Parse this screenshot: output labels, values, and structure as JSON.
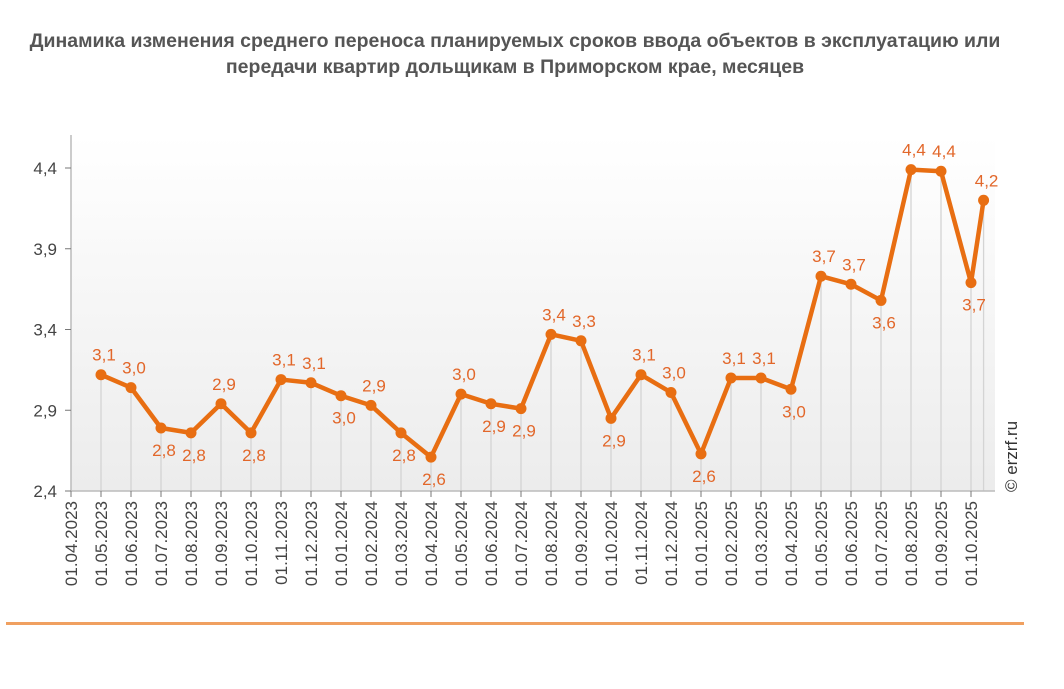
{
  "chart_data": {
    "type": "line",
    "title": "Динамика изменения среднего переноса планируемых сроков ввода объектов в эксплуатацию или передачи квартир дольщикам в Приморском крае, месяцев",
    "xlabel": "",
    "ylabel": "",
    "ylim": [
      2.4,
      4.6
    ],
    "yticks": [
      2.4,
      2.9,
      3.4,
      3.9,
      4.4
    ],
    "ytick_labels": [
      "2,4",
      "2,9",
      "3,4",
      "3,9",
      "4,4"
    ],
    "xtick_labels": [
      "01.04.2023",
      "01.05.2023",
      "01.06.2023",
      "01.07.2023",
      "01.08.2023",
      "01.09.2023",
      "01.10.2023",
      "01.11.2023",
      "01.12.2023",
      "01.01.2024",
      "01.02.2024",
      "01.03.2024",
      "01.04.2024",
      "01.05.2024",
      "01.06.2024",
      "01.07.2024",
      "01.08.2024",
      "01.09.2024",
      "01.10.2024",
      "01.11.2024",
      "01.12.2024",
      "01.01.2025",
      "01.02.2025",
      "01.03.2025",
      "01.04.2025",
      "01.05.2025",
      "01.06.2025",
      "01.07.2025",
      "01.08.2025",
      "01.09.2025",
      "01.10.2025"
    ],
    "grid": "vertical",
    "x": [
      "2023-05-01",
      "2023-06-01",
      "2023-07-01",
      "2023-08-01",
      "2023-09-01",
      "2023-10-01",
      "2023-11-01",
      "2023-12-01",
      "2024-01-01",
      "2024-02-01",
      "2024-03-01",
      "2024-04-01",
      "2024-05-01",
      "2024-06-01",
      "2024-07-01",
      "2024-08-01",
      "2024-09-01",
      "2024-10-01",
      "2024-11-01",
      "2024-12-01",
      "2025-01-01",
      "2025-02-01",
      "2025-03-01",
      "2025-04-01",
      "2025-05-01",
      "2025-06-01",
      "2025-07-01",
      "2025-08-01",
      "2025-09-01",
      "2025-10-01",
      "2025-10-14"
    ],
    "values": [
      3.12,
      3.04,
      2.79,
      2.76,
      2.94,
      2.76,
      3.09,
      3.07,
      2.99,
      2.93,
      2.76,
      2.61,
      3.0,
      2.94,
      2.91,
      3.37,
      3.33,
      2.85,
      3.12,
      3.01,
      2.63,
      3.1,
      3.1,
      3.03,
      3.73,
      3.68,
      3.58,
      4.39,
      4.38,
      3.69,
      4.2
    ],
    "data_labels": [
      "3,1",
      "3,0",
      "2,8",
      "2,8",
      "2,9",
      "2,8",
      "3,1",
      "3,1",
      "3,0",
      "2,9",
      "2,8",
      "2,6",
      "3,0",
      "2,9",
      "2,9",
      "3,4",
      "3,3",
      "2,9",
      "3,1",
      "3,0",
      "2,6",
      "3,1",
      "3,1",
      "3,0",
      "3,7",
      "3,7",
      "3,6",
      "4,4",
      "4,4",
      "3,7",
      "4,2"
    ],
    "label_pos": [
      "a",
      "a",
      "b",
      "b",
      "a",
      "b",
      "a",
      "a",
      "b",
      "a",
      "b",
      "b",
      "a",
      "b",
      "b",
      "a",
      "a",
      "b",
      "a",
      "a",
      "b",
      "a",
      "a",
      "b",
      "a",
      "a",
      "b",
      "a",
      "a",
      "b",
      "a"
    ],
    "colors": {
      "line": "#e86e12",
      "label": "#e2672a",
      "grid": "#d4d4d4",
      "axis": "#bbbbbb",
      "rule": "#f0a060"
    }
  },
  "watermark": "© erzrf.ru"
}
